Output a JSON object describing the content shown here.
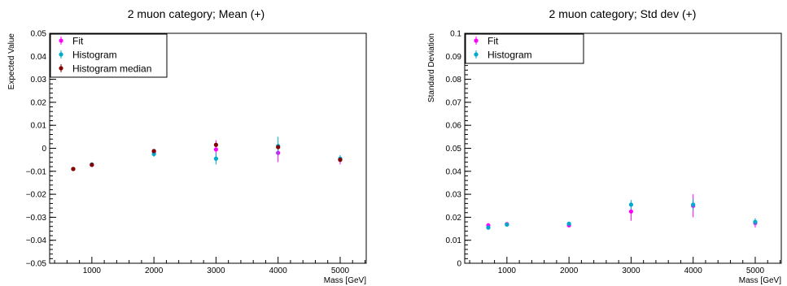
{
  "chart_data": [
    {
      "type": "scatter",
      "title": "2 muon category; Mean (+)",
      "xlabel": "Mass [GeV]",
      "ylabel": "Expected Value",
      "xlim": [
        320,
        5420
      ],
      "ylim": [
        -0.05,
        0.05
      ],
      "xticks": [
        1000,
        2000,
        3000,
        4000,
        5000
      ],
      "yticks": [
        -0.05,
        -0.04,
        -0.03,
        -0.02,
        -0.01,
        0,
        0.01,
        0.02,
        0.03,
        0.04,
        0.05
      ],
      "ytick_labels": [
        "−0.05",
        "−0.04",
        "−0.03",
        "−0.02",
        "−0.01",
        "0",
        "0.01",
        "0.02",
        "0.03",
        "0.04",
        "0.05"
      ],
      "legend": {
        "placement": "top-left"
      },
      "series": [
        {
          "name": "Fit",
          "color": "#ff00ff",
          "points": [
            {
              "x": 700,
              "y": -0.009,
              "err": 0.0006
            },
            {
              "x": 1000,
              "y": -0.0072,
              "err": 0.0005
            },
            {
              "x": 2000,
              "y": -0.0015,
              "err": 0.001
            },
            {
              "x": 3000,
              "y": -0.0005,
              "err": 0.004
            },
            {
              "x": 4000,
              "y": -0.002,
              "err": 0.004
            },
            {
              "x": 5000,
              "y": -0.005,
              "err": 0.002
            }
          ]
        },
        {
          "name": "Histogram",
          "color": "#00aacc",
          "points": [
            {
              "x": 700,
              "y": -0.009,
              "err": 0.0006
            },
            {
              "x": 1000,
              "y": -0.007,
              "err": 0.0005
            },
            {
              "x": 2000,
              "y": -0.0025,
              "err": 0.0012
            },
            {
              "x": 3000,
              "y": -0.0045,
              "err": 0.0025
            },
            {
              "x": 4000,
              "y": 0.001,
              "err": 0.004
            },
            {
              "x": 5000,
              "y": -0.0045,
              "err": 0.0015
            }
          ]
        },
        {
          "name": "Histogram median",
          "color": "#800000",
          "points": [
            {
              "x": 700,
              "y": -0.009,
              "err": 0
            },
            {
              "x": 1000,
              "y": -0.0072,
              "err": 0
            },
            {
              "x": 2000,
              "y": -0.0012,
              "err": 0
            },
            {
              "x": 3000,
              "y": 0.0015,
              "err": 0
            },
            {
              "x": 4000,
              "y": 0.0005,
              "err": 0
            },
            {
              "x": 5000,
              "y": -0.005,
              "err": 0
            }
          ]
        }
      ]
    },
    {
      "type": "scatter",
      "title": "2 muon category; Std dev (+)",
      "xlabel": "Mass [GeV]",
      "ylabel": "Standard Deviation",
      "xlim": [
        320,
        5420
      ],
      "ylim": [
        0,
        0.1
      ],
      "xticks": [
        1000,
        2000,
        3000,
        4000,
        5000
      ],
      "yticks": [
        0,
        0.01,
        0.02,
        0.03,
        0.04,
        0.05,
        0.06,
        0.07,
        0.08,
        0.09,
        0.1
      ],
      "ytick_labels": [
        "0",
        "0.01",
        "0.02",
        "0.03",
        "0.04",
        "0.05",
        "0.06",
        "0.07",
        "0.08",
        "0.09",
        "0.1"
      ],
      "legend": {
        "placement": "top-left"
      },
      "series": [
        {
          "name": "Fit",
          "color": "#ff00ff",
          "points": [
            {
              "x": 700,
              "y": 0.0165,
              "err": 0.001
            },
            {
              "x": 1000,
              "y": 0.017,
              "err": 0.0008
            },
            {
              "x": 2000,
              "y": 0.0165,
              "err": 0.001
            },
            {
              "x": 3000,
              "y": 0.0225,
              "err": 0.004
            },
            {
              "x": 4000,
              "y": 0.025,
              "err": 0.005
            },
            {
              "x": 5000,
              "y": 0.0175,
              "err": 0.002
            }
          ]
        },
        {
          "name": "Histogram",
          "color": "#00aacc",
          "points": [
            {
              "x": 700,
              "y": 0.0155,
              "err": 0.0008
            },
            {
              "x": 1000,
              "y": 0.0168,
              "err": 0.0006
            },
            {
              "x": 2000,
              "y": 0.0172,
              "err": 0.0008
            },
            {
              "x": 3000,
              "y": 0.0255,
              "err": 0.002
            },
            {
              "x": 4000,
              "y": 0.0255,
              "err": 0.0025
            },
            {
              "x": 5000,
              "y": 0.018,
              "err": 0.0015
            }
          ]
        }
      ]
    }
  ]
}
